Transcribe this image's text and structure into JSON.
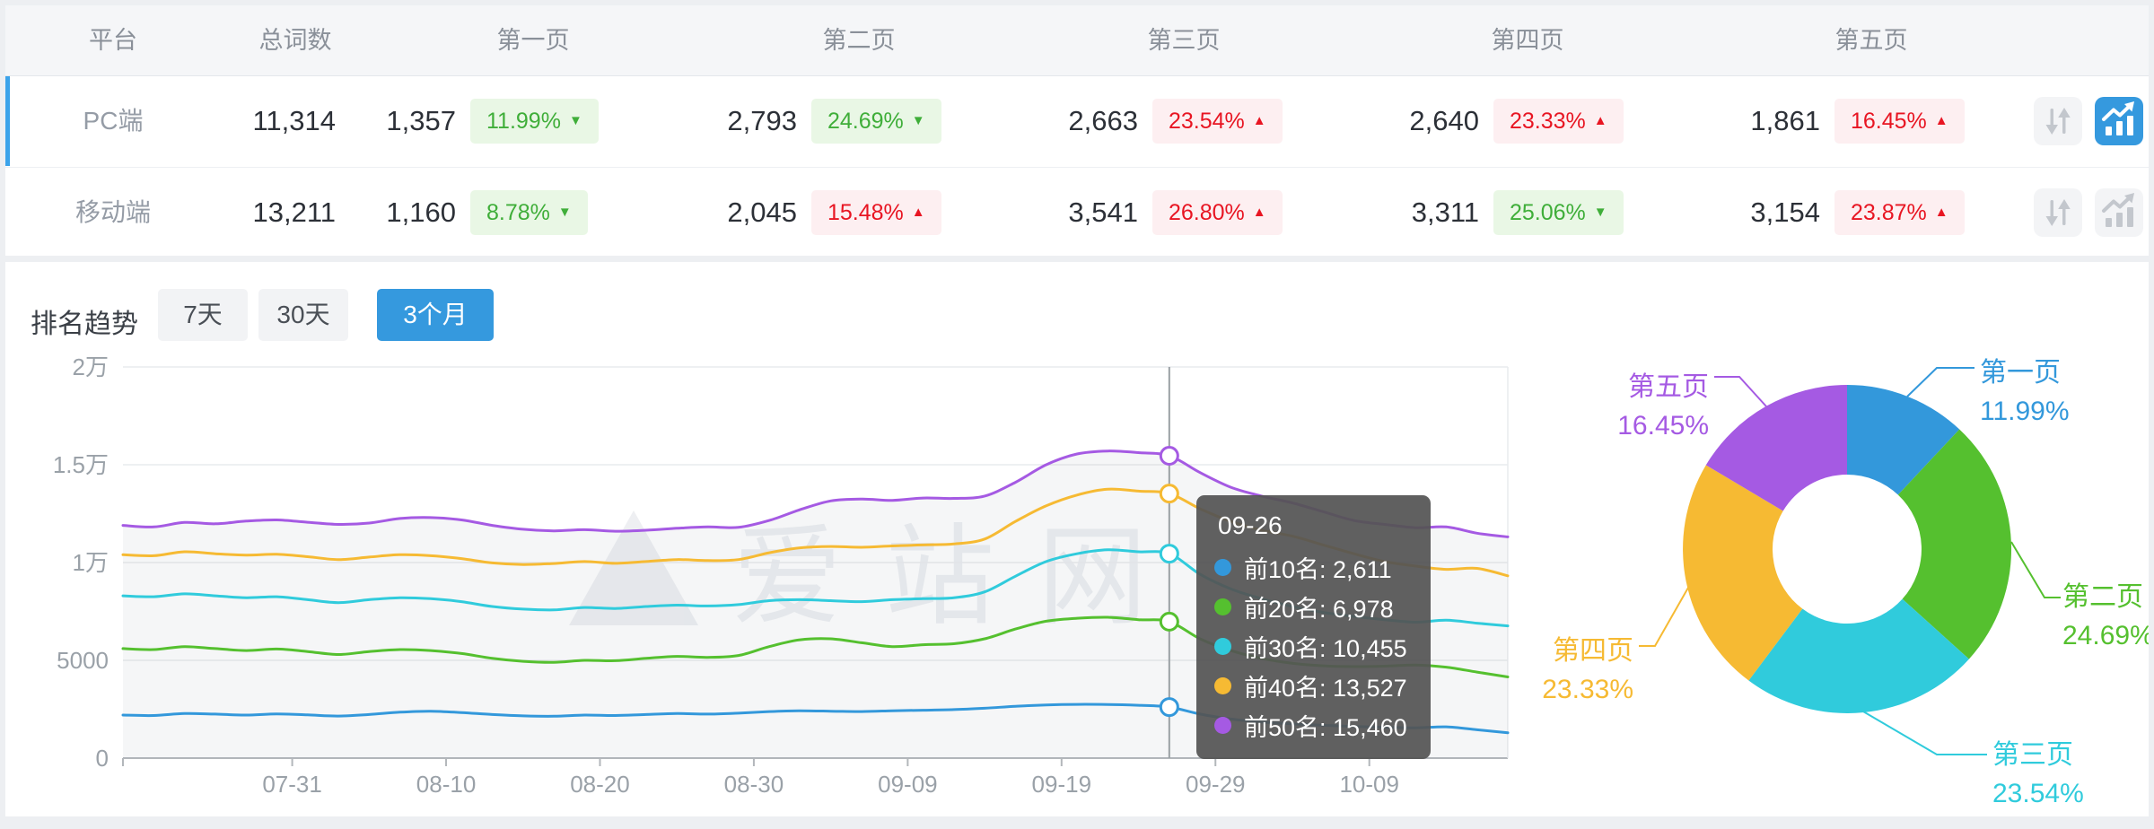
{
  "palette": {
    "accent_blue": "#3599de",
    "selected_row_border": "#3ba3ea",
    "badge_green_text": "#3fae39",
    "badge_green_bg": "#e9f7e5",
    "badge_red_text": "#e81522",
    "badge_red_bg": "#fdeff1",
    "series_blue": "#3398db",
    "series_green": "#55c02f",
    "series_cyan": "#30cbdc",
    "series_yellow": "#f6ba33",
    "series_purple": "#a55ae3",
    "icon_gray": "#c3c7cd"
  },
  "icons": {
    "sort": "up-down-arrows",
    "trend": "bar-line-chart-with-arrow"
  },
  "table": {
    "headers": {
      "platform": "平台",
      "total": "总词数",
      "page1": "第一页",
      "page2": "第二页",
      "page3": "第三页",
      "page4": "第四页",
      "page5": "第五页"
    },
    "rows": [
      {
        "platform": "PC端",
        "total": "11,314",
        "selected": true,
        "chart_active": true,
        "pages": [
          {
            "count": "1,357",
            "pct": "11.99%",
            "dir": "down",
            "tone": "green"
          },
          {
            "count": "2,793",
            "pct": "24.69%",
            "dir": "down",
            "tone": "green"
          },
          {
            "count": "2,663",
            "pct": "23.54%",
            "dir": "up",
            "tone": "red"
          },
          {
            "count": "2,640",
            "pct": "23.33%",
            "dir": "up",
            "tone": "red"
          },
          {
            "count": "1,861",
            "pct": "16.45%",
            "dir": "up",
            "tone": "red"
          }
        ]
      },
      {
        "platform": "移动端",
        "total": "13,211",
        "selected": false,
        "chart_active": false,
        "pages": [
          {
            "count": "1,160",
            "pct": "8.78%",
            "dir": "down",
            "tone": "green"
          },
          {
            "count": "2,045",
            "pct": "15.48%",
            "dir": "up",
            "tone": "red"
          },
          {
            "count": "3,541",
            "pct": "26.80%",
            "dir": "up",
            "tone": "red"
          },
          {
            "count": "3,311",
            "pct": "25.06%",
            "dir": "down",
            "tone": "green"
          },
          {
            "count": "3,154",
            "pct": "23.87%",
            "dir": "up",
            "tone": "red"
          }
        ]
      }
    ]
  },
  "trend": {
    "section_title": "排名趋势",
    "tabs": [
      {
        "label": "7天",
        "active": false
      },
      {
        "label": "30天",
        "active": false
      },
      {
        "label": "3个月",
        "active": true
      }
    ],
    "watermark": "爱站网",
    "tooltip": {
      "date": "09-26",
      "rows": [
        {
          "text": "前10名: 2,611",
          "color": "#3398db"
        },
        {
          "text": "前20名: 6,978",
          "color": "#55c02f"
        },
        {
          "text": "前30名: 10,455",
          "color": "#30cbdc"
        },
        {
          "text": "前40名: 13,527",
          "color": "#f6ba33"
        },
        {
          "text": "前50名: 15,460",
          "color": "#a55ae3"
        }
      ]
    }
  },
  "chart_data": [
    {
      "id": "rank-trend",
      "type": "line",
      "title": "排名趋势",
      "x_start": "07-20",
      "step_days": 2,
      "x_ticks": [
        "07-31",
        "08-10",
        "08-20",
        "08-30",
        "09-09",
        "09-19",
        "09-29",
        "10-09"
      ],
      "y_ticks": [
        "0",
        "5000",
        "1万",
        "1.5万",
        "2万"
      ],
      "ylim": [
        0,
        20000
      ],
      "grid": true,
      "legend_position": "none",
      "series": [
        {
          "name": "前10名",
          "color": "#3398db",
          "values": [
            2200,
            2180,
            2280,
            2250,
            2200,
            2260,
            2210,
            2150,
            2230,
            2350,
            2400,
            2330,
            2230,
            2160,
            2140,
            2200,
            2180,
            2230,
            2280,
            2250,
            2300,
            2380,
            2420,
            2400,
            2380,
            2420,
            2450,
            2480,
            2550,
            2650,
            2720,
            2750,
            2740,
            2700,
            2611,
            2250,
            2000,
            1850,
            1750,
            1680,
            1620,
            1580,
            1550,
            1600,
            1450,
            1300
          ]
        },
        {
          "name": "前20名",
          "color": "#55c02f",
          "values": [
            5600,
            5550,
            5700,
            5600,
            5500,
            5580,
            5450,
            5300,
            5450,
            5550,
            5500,
            5350,
            5100,
            4950,
            4900,
            5000,
            4980,
            5100,
            5200,
            5150,
            5250,
            5700,
            6050,
            6100,
            5900,
            5700,
            5800,
            5850,
            6100,
            6600,
            7000,
            7150,
            7200,
            7080,
            6978,
            6100,
            5500,
            5100,
            4850,
            4720,
            4680,
            4700,
            4760,
            4650,
            4400,
            4150
          ]
        },
        {
          "name": "前30名",
          "color": "#30cbdc",
          "values": [
            8300,
            8250,
            8400,
            8300,
            8200,
            8250,
            8100,
            7950,
            8100,
            8200,
            8150,
            8000,
            7750,
            7620,
            7580,
            7700,
            7650,
            7750,
            7820,
            7780,
            7850,
            8050,
            8100,
            8050,
            8000,
            8100,
            8150,
            8200,
            8500,
            9300,
            10050,
            10450,
            10650,
            10550,
            10455,
            9400,
            8650,
            8150,
            7750,
            7450,
            7250,
            7080,
            6950,
            7050,
            6900,
            6760
          ]
        },
        {
          "name": "前40名",
          "color": "#f6ba33",
          "values": [
            10400,
            10350,
            10550,
            10450,
            10380,
            10420,
            10300,
            10150,
            10280,
            10400,
            10350,
            10200,
            9980,
            9900,
            9950,
            10050,
            9960,
            10050,
            10150,
            10100,
            10150,
            10500,
            10750,
            10820,
            10780,
            10850,
            10900,
            10950,
            11200,
            12100,
            12900,
            13450,
            13750,
            13650,
            13527,
            12750,
            12100,
            11650,
            11350,
            10900,
            10450,
            10050,
            9820,
            9650,
            9700,
            9320
          ]
        },
        {
          "name": "前50名",
          "color": "#a55ae3",
          "values": [
            11900,
            11820,
            12050,
            11980,
            12120,
            12180,
            12060,
            11950,
            12020,
            12250,
            12300,
            12180,
            11900,
            11700,
            11620,
            11680,
            11600,
            11650,
            11750,
            11820,
            11800,
            12150,
            12700,
            13150,
            13250,
            13180,
            13300,
            13280,
            13400,
            14100,
            15000,
            15550,
            15700,
            15620,
            15460,
            14600,
            13850,
            13400,
            13050,
            12600,
            12150,
            11950,
            11780,
            11820,
            11500,
            11310
          ]
        }
      ],
      "highlight": {
        "date": "09-26",
        "point_index": 34,
        "values": [
          2611,
          6978,
          10455,
          13527,
          15460
        ]
      }
    },
    {
      "id": "page-distribution",
      "type": "donut",
      "slices": [
        {
          "label": "第一页",
          "pct": 11.99,
          "pct_label": "11.99%",
          "color": "#3398db"
        },
        {
          "label": "第二页",
          "pct": 24.69,
          "pct_label": "24.69%",
          "color": "#55c02f"
        },
        {
          "label": "第三页",
          "pct": 23.54,
          "pct_label": "23.54%",
          "color": "#30cbdc"
        },
        {
          "label": "第四页",
          "pct": 23.33,
          "pct_label": "23.33%",
          "color": "#f6ba33"
        },
        {
          "label": "第五页",
          "pct": 16.45,
          "pct_label": "16.45%",
          "color": "#a55ae3"
        }
      ]
    }
  ]
}
